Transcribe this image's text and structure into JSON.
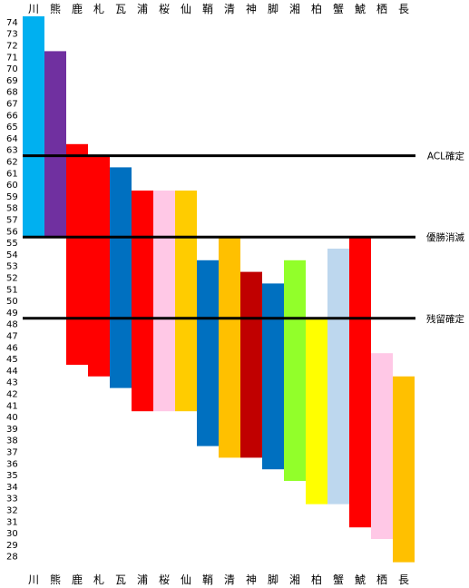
{
  "chart_data": {
    "type": "bar",
    "categories": [
      "川",
      "熊",
      "鹿",
      "札",
      "瓦",
      "浦",
      "桜",
      "仙",
      "鞘",
      "清",
      "神",
      "脚",
      "湘",
      "柏",
      "蟹",
      "鯱",
      "栖",
      "長"
    ],
    "ranges": [
      {
        "category": "川",
        "low": 56,
        "high": 74,
        "color": "#00B0F0"
      },
      {
        "category": "熊",
        "low": 56,
        "high": 71,
        "color": "#7030A0"
      },
      {
        "category": "鹿",
        "low": 45,
        "high": 63,
        "color": "#FF0000"
      },
      {
        "category": "札",
        "low": 44,
        "high": 62,
        "color": "#FF0000"
      },
      {
        "category": "瓦",
        "low": 43,
        "high": 61,
        "color": "#0070C0"
      },
      {
        "category": "浦",
        "low": 41,
        "high": 59,
        "color": "#FF0000"
      },
      {
        "category": "桜",
        "low": 41,
        "high": 59,
        "color": "#FFC8E6"
      },
      {
        "category": "仙",
        "low": 41,
        "high": 59,
        "color": "#FFCC00"
      },
      {
        "category": "鞘",
        "low": 38,
        "high": 53,
        "color": "#0070C0"
      },
      {
        "category": "清",
        "low": 37,
        "high": 55,
        "color": "#FFC000"
      },
      {
        "category": "神",
        "low": 37,
        "high": 52,
        "color": "#C00000"
      },
      {
        "category": "脚",
        "low": 36,
        "high": 51,
        "color": "#0070C0"
      },
      {
        "category": "湘",
        "low": 35,
        "high": 53,
        "color": "#92FF2A"
      },
      {
        "category": "柏",
        "low": 33,
        "high": 48,
        "color": "#FFFF00"
      },
      {
        "category": "蟹",
        "low": 33,
        "high": 54,
        "color": "#BDD7EE"
      },
      {
        "category": "鯱",
        "low": 31,
        "high": 55,
        "color": "#FF0000"
      },
      {
        "category": "栖",
        "low": 30,
        "high": 45,
        "color": "#FFC8E6"
      },
      {
        "category": "長",
        "low": 28,
        "high": 43,
        "color": "#FFC000"
      }
    ],
    "yticks": [
      74,
      73,
      72,
      71,
      70,
      69,
      68,
      67,
      66,
      65,
      64,
      63,
      62,
      61,
      60,
      59,
      58,
      57,
      56,
      55,
      54,
      53,
      52,
      51,
      50,
      49,
      48,
      47,
      46,
      45,
      44,
      43,
      42,
      41,
      40,
      39,
      38,
      37,
      36,
      35,
      34,
      33,
      32,
      31,
      30,
      29,
      28
    ],
    "ylim": [
      28,
      74
    ],
    "reference_lines": [
      {
        "label": "ACL確定",
        "value": 62.5
      },
      {
        "label": "優勝消滅",
        "value": 55.5
      },
      {
        "label": "残留確定",
        "value": 48.5
      }
    ],
    "title": "",
    "xlabel": "",
    "ylabel": ""
  }
}
